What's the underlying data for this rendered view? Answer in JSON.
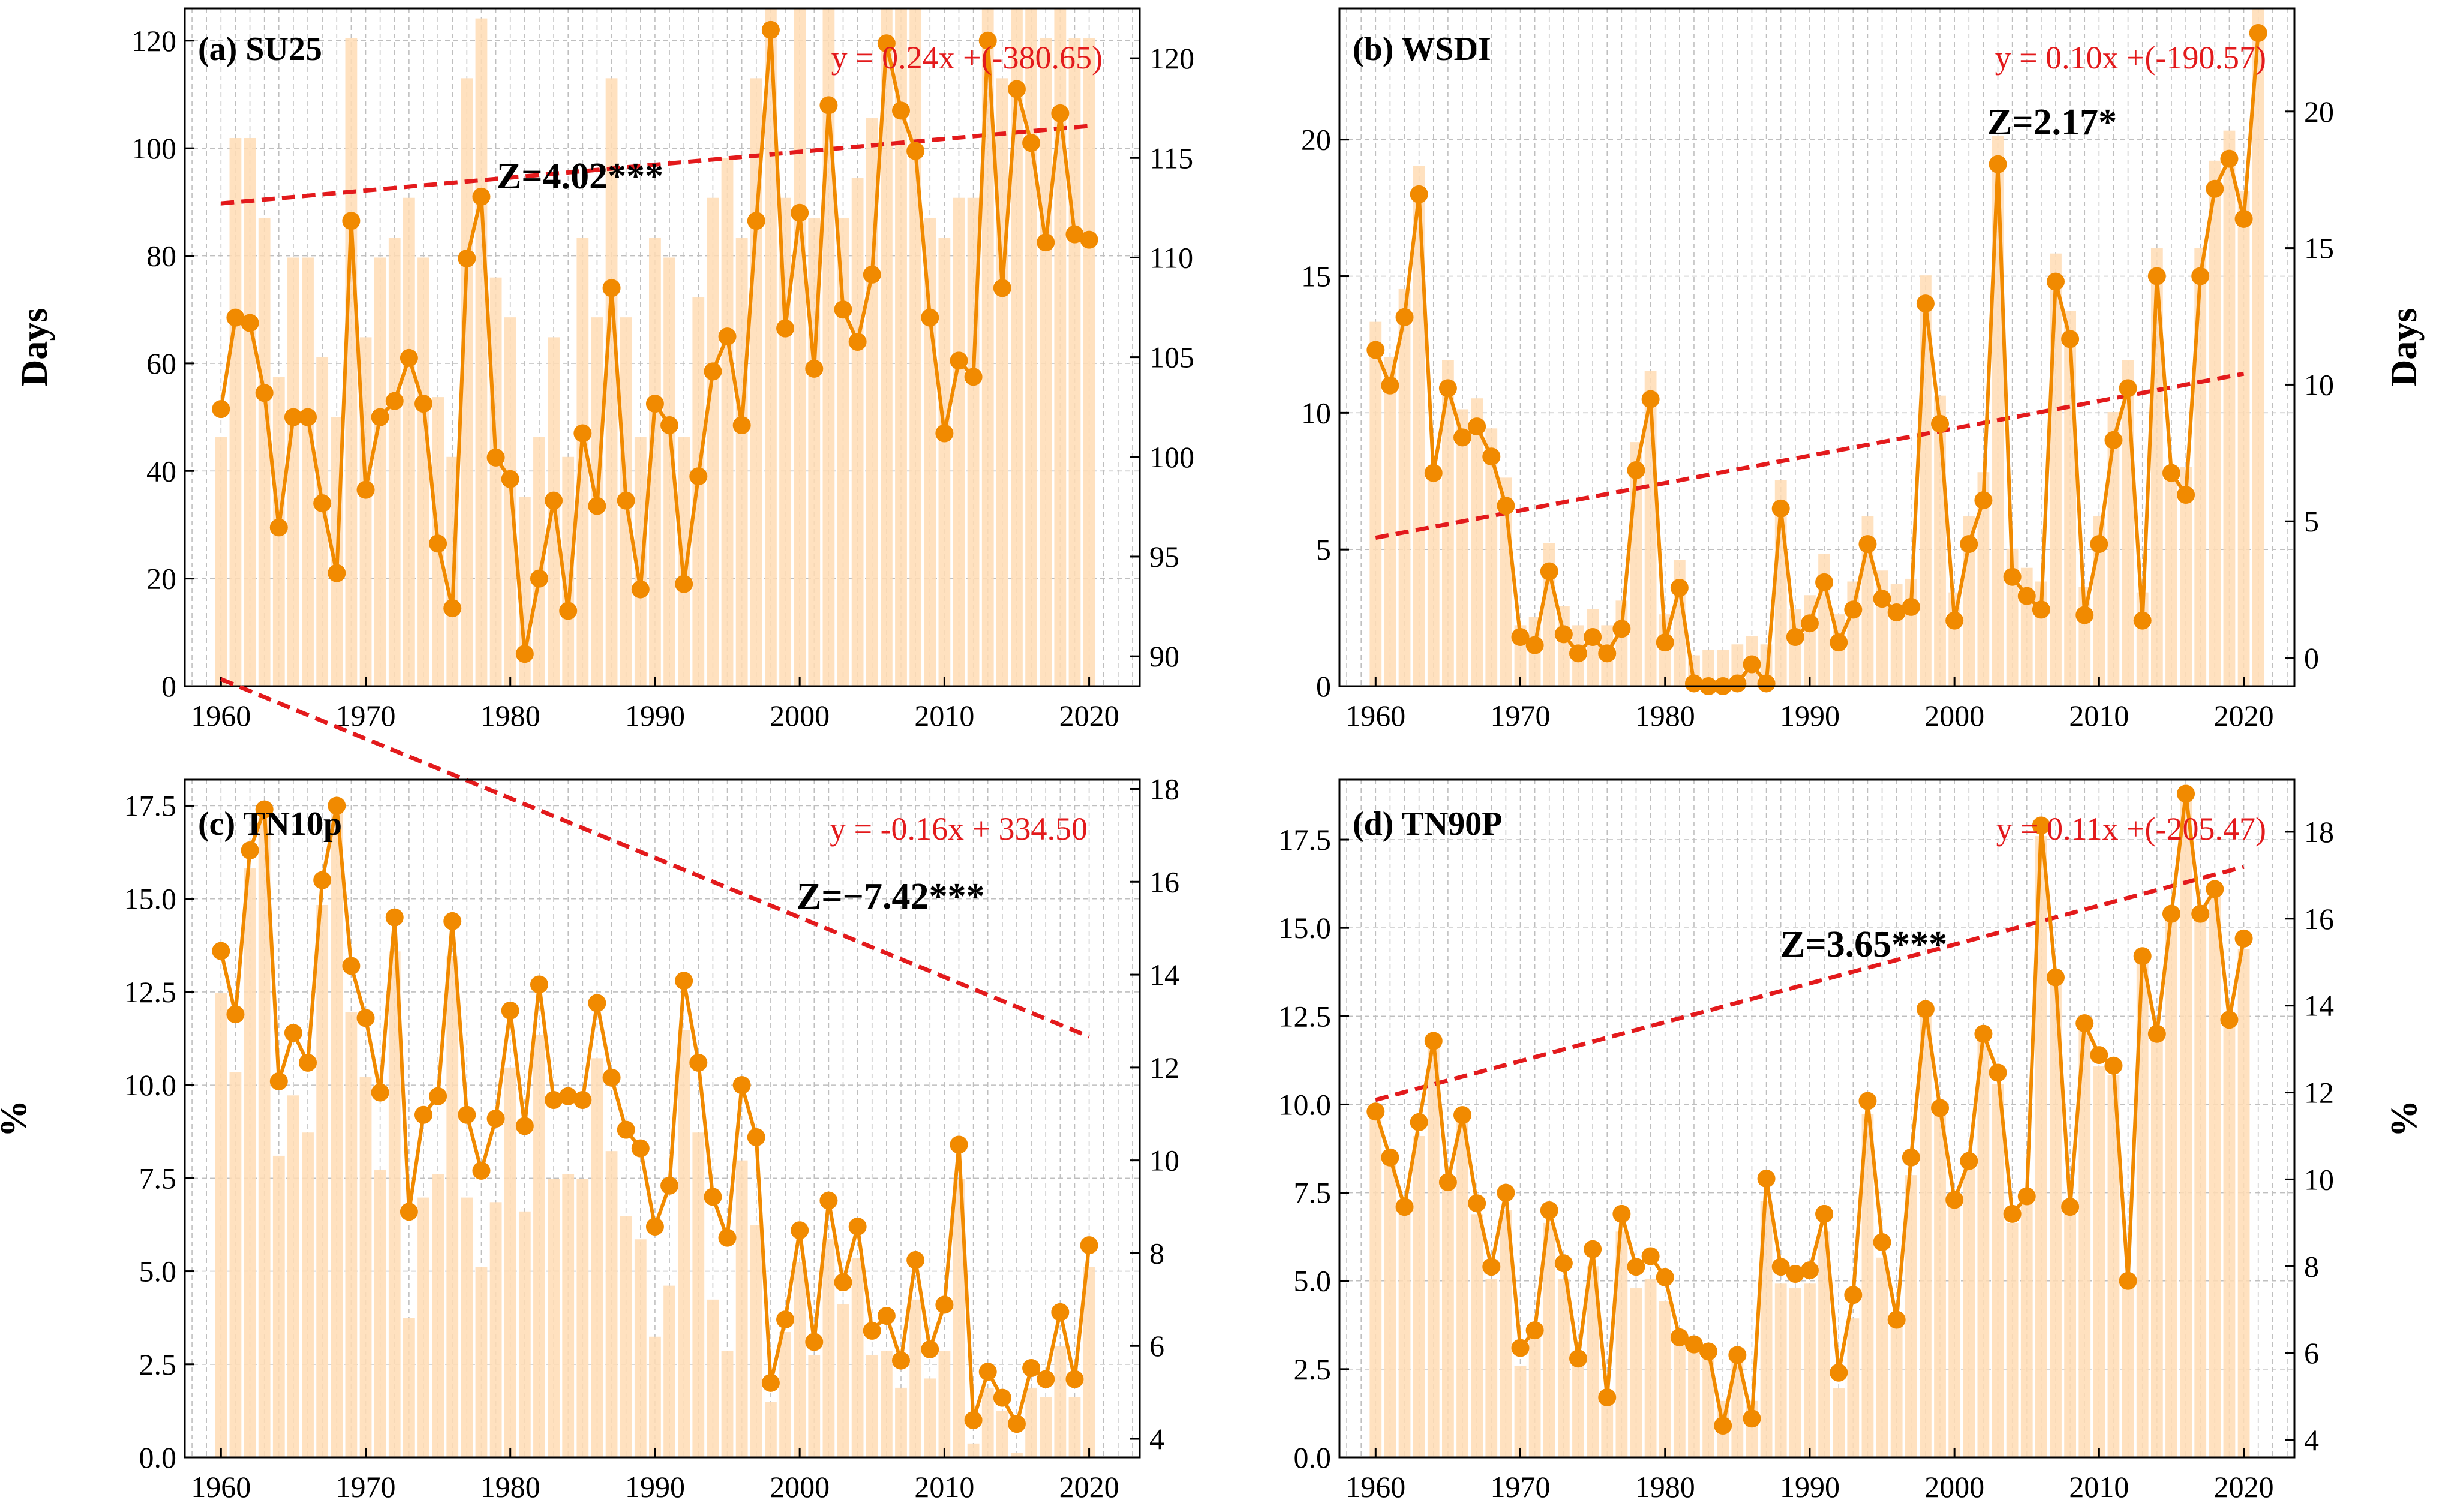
{
  "figure": {
    "series_color": "#f18a00",
    "bar_color": "#ffdcb4",
    "trend_color": "#e31a1c",
    "grid_color": "#bfbfbf"
  },
  "chart_data": [
    {
      "id": "a",
      "type": "bar+line",
      "label": "(a) SU25",
      "left_ylabel": "Days",
      "right_ylabel": "",
      "equation": "y = 0.24x +(-380.65)",
      "z_text": "Z=4.02***",
      "slope": 0.24,
      "intercept": -380.65,
      "xlim": [
        1957.5,
        2023.5
      ],
      "x_ticks": [
        1960,
        1970,
        1980,
        1990,
        2000,
        2010,
        2020
      ],
      "ylim": [
        0,
        126
      ],
      "y_ticks": [
        0,
        20,
        40,
        60,
        80,
        100,
        120
      ],
      "y_tick_labels": [
        "0",
        "20",
        "40",
        "60",
        "80",
        "100",
        "120"
      ],
      "right_ylim": [
        88.5,
        122.5
      ],
      "right_ticks": [
        90,
        95,
        100,
        105,
        110,
        115,
        120
      ],
      "right_tick_labels": [
        "90",
        "95",
        "100",
        "105",
        "110",
        "115",
        "120"
      ],
      "years_start": 1960,
      "line_values": [
        51.5,
        68.5,
        67.5,
        54.5,
        29.5,
        50,
        50,
        34,
        21,
        86.5,
        36.5,
        50,
        53,
        61,
        52.5,
        26.5,
        14.5,
        79.5,
        91,
        42.5,
        38.5,
        6,
        20,
        34.5,
        14,
        47,
        33.5,
        74,
        34.5,
        18,
        52.5,
        48.5,
        19,
        39,
        58.5,
        65,
        48.5,
        86.5,
        122,
        66.5,
        88,
        59,
        108,
        70,
        64,
        76.5,
        119.5,
        107,
        99.5,
        68.5,
        47,
        60.5,
        57.5,
        120,
        74,
        111,
        101,
        82.5,
        106.5,
        84,
        83
      ],
      "bar_values": [
        101,
        116,
        116,
        112,
        104,
        110,
        110,
        105,
        102,
        121,
        106,
        110,
        111,
        113,
        110,
        103,
        100,
        119,
        122,
        109,
        107,
        98,
        101,
        106,
        100,
        111,
        107,
        119,
        107,
        101,
        111,
        110,
        101,
        108,
        113,
        115,
        111,
        119,
        131,
        113,
        123,
        112,
        128,
        112,
        114,
        117,
        129,
        126,
        124,
        112,
        111,
        113,
        113,
        129,
        119,
        128,
        125,
        121,
        126,
        121,
        121
      ]
    },
    {
      "id": "b",
      "type": "bar+line",
      "label": "(b) WSDI",
      "left_ylabel": "",
      "right_ylabel": "Days",
      "equation": "y = 0.10x +(-190.57)",
      "z_text": "Z=2.17*",
      "slope": 0.1,
      "intercept": -190.57,
      "xlim": [
        1957.5,
        2023.5
      ],
      "x_ticks": [
        1960,
        1970,
        1980,
        1990,
        2000,
        2010,
        2020
      ],
      "ylim": [
        0,
        24.8
      ],
      "y_ticks": [
        0,
        5,
        10,
        15,
        20
      ],
      "y_tick_labels": [
        "0",
        "5",
        "10",
        "15",
        "20"
      ],
      "right_ylim": [
        -1.03,
        23.77
      ],
      "right_ticks": [
        0,
        5,
        10,
        15,
        20
      ],
      "right_tick_labels": [
        "0",
        "5",
        "10",
        "15",
        "20"
      ],
      "years_start": 1960,
      "line_values": [
        12.3,
        11,
        13.5,
        18,
        7.8,
        10.9,
        9.1,
        9.5,
        8.4,
        6.6,
        1.8,
        1.5,
        4.2,
        1.9,
        1.2,
        1.8,
        1.2,
        2.1,
        7.9,
        10.5,
        1.6,
        3.6,
        0.1,
        0,
        0,
        0.1,
        0.8,
        0.1,
        6.5,
        1.8,
        2.3,
        3.8,
        1.6,
        2.8,
        5.2,
        3.2,
        2.7,
        2.9,
        14,
        9.6,
        2.4,
        5.2,
        6.8,
        19.1,
        4,
        3.3,
        2.8,
        14.8,
        12.7,
        2.6,
        5.2,
        9,
        10.9,
        2.4,
        15,
        7.8,
        7,
        15,
        18.2,
        19.3,
        17.1,
        23.9
      ],
      "bar_values": [
        12.3,
        11,
        13.5,
        18,
        7.0,
        10.9,
        9.1,
        9.5,
        8.4,
        6.6,
        1.2,
        1.5,
        4.2,
        1.9,
        1.2,
        1.8,
        1.2,
        2.1,
        7.9,
        10.5,
        1.6,
        3.6,
        0.1,
        0.3,
        0.3,
        0.5,
        0.8,
        0.5,
        6.5,
        1.8,
        2.3,
        3.8,
        1.6,
        2.8,
        5.2,
        3.2,
        2.7,
        2.9,
        14,
        9.6,
        2.4,
        5.2,
        6.8,
        19.1,
        4,
        3.3,
        2.8,
        14.8,
        12.7,
        2.6,
        5.2,
        9,
        10.9,
        2.4,
        15,
        7.0,
        7,
        15,
        18.2,
        19.3,
        17.1,
        23.9
      ]
    },
    {
      "id": "c",
      "type": "bar+line",
      "label": "(c) TN10p",
      "left_ylabel": "%",
      "right_ylabel": "",
      "equation": "y = -0.16x + 334.50",
      "z_text": "Z=−7.42***",
      "slope": -0.16,
      "intercept": 334.5,
      "xlim": [
        1957.5,
        2023.5
      ],
      "x_ticks": [
        1960,
        1970,
        1980,
        1990,
        2000,
        2010,
        2020
      ],
      "ylim": [
        0,
        18.2
      ],
      "y_ticks": [
        0,
        2.5,
        5,
        7.5,
        10,
        12.5,
        15,
        17.5
      ],
      "y_tick_labels": [
        "0.0",
        "2.5",
        "5.0",
        "7.5",
        "10.0",
        "12.5",
        "15.0",
        "17.5"
      ],
      "right_ylim": [
        3.6,
        18.2
      ],
      "right_ticks": [
        4,
        6,
        8,
        10,
        12,
        14,
        16,
        18
      ],
      "right_tick_labels": [
        "4",
        "6",
        "8",
        "10",
        "12",
        "14",
        "16",
        "18"
      ],
      "years_start": 1960,
      "line_values": [
        13.6,
        11.9,
        16.3,
        17.4,
        10.1,
        11.4,
        10.6,
        15.5,
        17.5,
        13.2,
        11.8,
        9.8,
        14.5,
        6.6,
        9.2,
        9.7,
        14.4,
        9.2,
        7.7,
        9.1,
        12,
        8.9,
        12.7,
        9.6,
        9.7,
        9.6,
        12.2,
        10.2,
        8.8,
        8.3,
        6.2,
        7.3,
        12.8,
        10.6,
        7,
        5.9,
        10,
        8.6,
        2,
        3.7,
        6.1,
        3.1,
        6.9,
        4.7,
        6.2,
        3.4,
        3.8,
        2.6,
        5.3,
        2.9,
        4.1,
        8.4,
        1,
        2.3,
        1.6,
        0.9,
        2.4,
        2.1,
        3.9,
        2.1,
        5.7
      ],
      "bar_values": [
        13.6,
        11.9,
        16.3,
        17.4,
        10.1,
        11.4,
        10.6,
        15.5,
        17.5,
        13.2,
        11.8,
        9.8,
        14.5,
        6.6,
        9.2,
        9.7,
        14.4,
        9.2,
        7.7,
        9.1,
        12,
        8.9,
        12.7,
        9.6,
        9.7,
        9.6,
        12.2,
        10.2,
        8.8,
        8.3,
        6.2,
        7.3,
        12.8,
        10.6,
        7,
        5.9,
        10,
        8.6,
        4.8,
        6.3,
        7.8,
        5.8,
        8.3,
        6.9,
        7.9,
        5.8,
        5.9,
        5.1,
        7.0,
        5.3,
        5.9,
        9.6,
        3.9,
        5.1,
        4.6,
        3.7,
        5.1,
        4.9,
        6.0,
        4.9,
        7.7
      ]
    },
    {
      "id": "d",
      "type": "bar+line",
      "label": "(d) TN90P",
      "left_ylabel": "",
      "right_ylabel": "%",
      "equation": "y = 0.11x +(-205.47)",
      "z_text": "Z=3.65***",
      "slope": 0.11,
      "intercept": -205.47,
      "xlim": [
        1957.5,
        2023.5
      ],
      "x_ticks": [
        1960,
        1970,
        1980,
        1990,
        2000,
        2010,
        2020
      ],
      "ylim": [
        0,
        19.2
      ],
      "y_ticks": [
        0,
        2.5,
        5,
        7.5,
        10,
        12.5,
        15,
        17.5
      ],
      "y_tick_labels": [
        "0.0",
        "2.5",
        "5.0",
        "7.5",
        "10.0",
        "12.5",
        "15.0",
        "17.5"
      ],
      "right_ylim": [
        3.6,
        19.2
      ],
      "right_ticks": [
        4,
        6,
        8,
        10,
        12,
        14,
        16,
        18
      ],
      "right_tick_labels": [
        "4",
        "6",
        "8",
        "10",
        "12",
        "14",
        "16",
        "18"
      ],
      "years_start": 1960,
      "line_values": [
        9.8,
        8.5,
        7.1,
        9.5,
        11.8,
        7.8,
        9.7,
        7.2,
        5.4,
        7.5,
        3.1,
        3.6,
        7,
        5.5,
        2.8,
        5.9,
        1.7,
        6.9,
        5.4,
        5.7,
        5.1,
        3.4,
        3.2,
        3,
        0.9,
        2.9,
        1.1,
        7.9,
        5.4,
        5.2,
        5.3,
        6.9,
        2.4,
        4.6,
        10.1,
        6.1,
        3.9,
        8.5,
        12.7,
        9.9,
        7.3,
        8.4,
        12,
        10.9,
        6.9,
        7.4,
        17.9,
        13.6,
        7.1,
        12.3,
        11.4,
        11.1,
        5,
        14.2,
        12,
        15.4,
        18.8,
        15.4,
        16.1,
        12.4,
        14.7
      ],
      "bar_values": [
        11.4,
        10.4,
        9.3,
        11,
        13.1,
        10.1,
        11.5,
        9.2,
        7.7,
        9.3,
        5.7,
        6.4,
        9,
        7.7,
        5.8,
        8,
        5,
        8.8,
        7.5,
        7.7,
        7.2,
        6.3,
        6.2,
        6,
        4.9,
        5.9,
        4.9,
        9.5,
        7.6,
        7.5,
        7.6,
        8.8,
        5.2,
        6.8,
        11.5,
        8.2,
        6.6,
        10.1,
        13.8,
        11.5,
        9.4,
        10.3,
        13.2,
        12.2,
        9,
        9.5,
        17.9,
        14.7,
        9.3,
        13.6,
        12.6,
        12.4,
        7.7,
        15,
        13.2,
        16,
        19,
        16,
        16.5,
        13.7,
        15.3
      ]
    }
  ]
}
